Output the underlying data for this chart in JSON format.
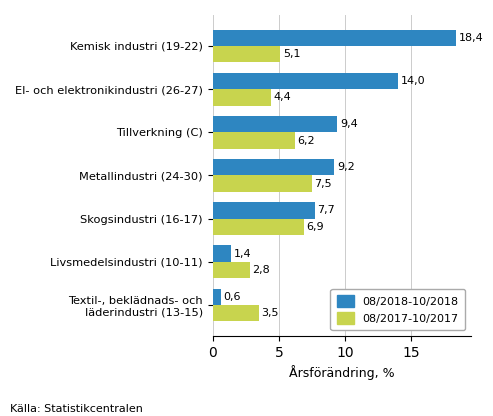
{
  "categories": [
    "Kemisk industri (19-22)",
    "El- och elektronikindustri (26-27)",
    "Tillverkning (C)",
    "Metallindustri (24-30)",
    "Skogsindustri (16-17)",
    "Livsmedelsindustri (10-11)",
    "Textil-, beklädnads- och\nläderindustri (13-15)"
  ],
  "values_2018": [
    18.4,
    14.0,
    9.4,
    9.2,
    7.7,
    1.4,
    0.6
  ],
  "values_2017": [
    5.1,
    4.4,
    6.2,
    7.5,
    6.9,
    2.8,
    3.5
  ],
  "color_2018": "#2E86C1",
  "color_2017": "#C8D44E",
  "xlabel": "Årsförändring, %",
  "legend_2018": "08/2018-10/2018",
  "legend_2017": "08/2017-10/2017",
  "source": "Källa: Statistikcentralen",
  "xlim": [
    0,
    19.5
  ],
  "xticks": [
    0,
    5,
    10,
    15
  ]
}
